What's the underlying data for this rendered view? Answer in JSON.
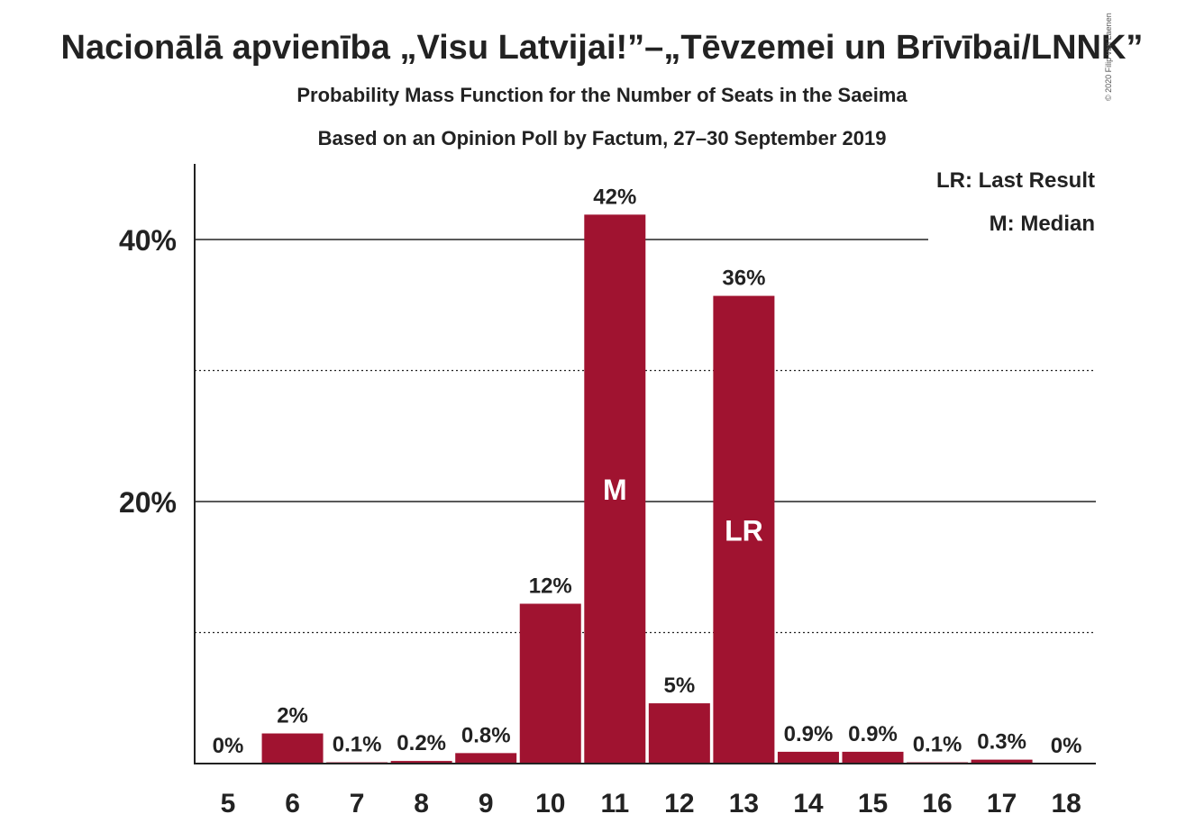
{
  "chart_data": {
    "type": "bar",
    "title": "Nacionālā apvienība „Visu Latvijai!”–„Tēvzemei un Brīvībai/LNNK”",
    "subtitle": "Probability Mass Function for the Number of Seats in the Saeima",
    "subtitle2": "Based on an Opinion Poll by Factum, 27–30 September 2019",
    "copyright": "© 2020 Filip van Laenen",
    "categories": [
      "5",
      "6",
      "7",
      "8",
      "9",
      "10",
      "11",
      "12",
      "13",
      "14",
      "15",
      "16",
      "17",
      "18"
    ],
    "values": [
      0,
      2.3,
      0.1,
      0.2,
      0.8,
      12.2,
      41.9,
      4.6,
      35.7,
      0.9,
      0.9,
      0.1,
      0.3,
      0
    ],
    "data_labels": [
      "0%",
      "2%",
      "0.1%",
      "0.2%",
      "0.8%",
      "12%",
      "42%",
      "5%",
      "36%",
      "0.9%",
      "0.9%",
      "0.1%",
      "0.3%",
      "0%"
    ],
    "in_bar_labels": [
      {
        "category": "11",
        "text": "M"
      },
      {
        "category": "13",
        "text": "LR"
      }
    ],
    "yticks": [
      {
        "value": 20,
        "label": "20%"
      },
      {
        "value": 40,
        "label": "40%"
      }
    ],
    "minor_gridlines": [
      10,
      30
    ],
    "ylim": [
      0,
      46
    ],
    "legend": {
      "placement": "top-right",
      "entries": [
        "LR: Last Result",
        "M: Median"
      ]
    },
    "colors": {
      "bar": "#A01330",
      "text": "#222222"
    }
  }
}
